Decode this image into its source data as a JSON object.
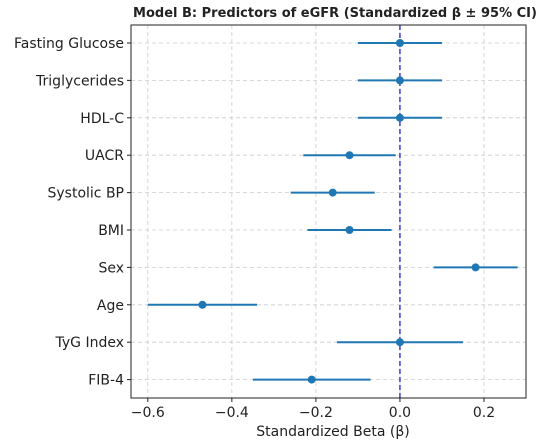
{
  "chart_data": {
    "type": "forest",
    "title": "Model B: Predictors of eGFR (Standardized β ± 95% CI)",
    "xlabel": "Standardized Beta (β)",
    "ylabel": "",
    "xlim": [
      -0.64,
      0.3
    ],
    "xticks": [
      -0.6,
      -0.4,
      -0.2,
      0.0,
      0.2
    ],
    "xtick_labels": [
      "−0.6",
      "−0.4",
      "−0.2",
      "0.0",
      "0.2"
    ],
    "reference_line": 0.0,
    "grid": true,
    "points": [
      {
        "label": "Fasting Glucose",
        "beta": 0.0,
        "ci_low": -0.1,
        "ci_high": 0.1
      },
      {
        "label": "Triglycerides",
        "beta": 0.0,
        "ci_low": -0.1,
        "ci_high": 0.1
      },
      {
        "label": "HDL-C",
        "beta": 0.0,
        "ci_low": -0.1,
        "ci_high": 0.1
      },
      {
        "label": "UACR",
        "beta": -0.12,
        "ci_low": -0.23,
        "ci_high": -0.01
      },
      {
        "label": "Systolic BP",
        "beta": -0.16,
        "ci_low": -0.26,
        "ci_high": -0.06
      },
      {
        "label": "BMI",
        "beta": -0.12,
        "ci_low": -0.22,
        "ci_high": -0.02
      },
      {
        "label": "Sex",
        "beta": 0.18,
        "ci_low": 0.08,
        "ci_high": 0.28
      },
      {
        "label": "Age",
        "beta": -0.47,
        "ci_low": -0.6,
        "ci_high": -0.34
      },
      {
        "label": "TyG Index",
        "beta": 0.0,
        "ci_low": -0.15,
        "ci_high": 0.15
      },
      {
        "label": "FIB-4",
        "beta": -0.21,
        "ci_low": -0.35,
        "ci_high": -0.07
      }
    ],
    "colors": {
      "marker": "#1f77b4",
      "ref_line": "#2222cc",
      "grid": "#cccccc",
      "axis": "#222222"
    }
  }
}
